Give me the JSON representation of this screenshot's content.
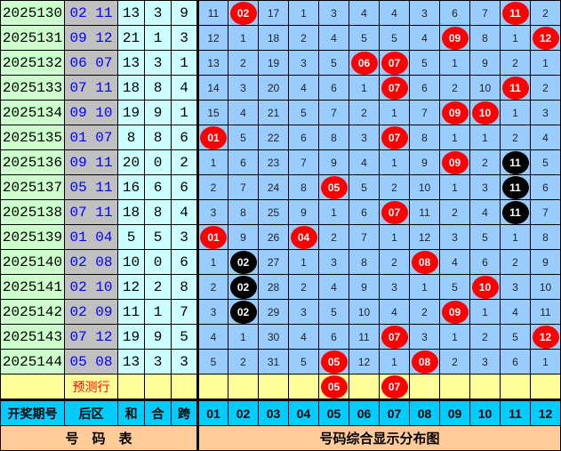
{
  "colors": {
    "hit": "#ff0000",
    "repeat": "#000000",
    "period_bg": "#ccffcc",
    "back_bg": "#c0c0c0",
    "stats_bg": "#ccffff",
    "grid_bg": "#99ccff",
    "predict_bg": "#ffff99",
    "header_bg": "#00ccff",
    "footer_bg": "#ffcc99"
  },
  "rows": [
    {
      "period": "2025130",
      "back": "02 11",
      "sum": "13",
      "he": "3",
      "kua": "9",
      "cells": [
        "11",
        "02",
        "17",
        "1",
        "3",
        "4",
        "4",
        "3",
        "6",
        "7",
        "11",
        "2"
      ],
      "marks": [
        "",
        "r",
        "",
        "",
        "",
        "",
        "",
        "",
        "",
        "",
        "r",
        ""
      ]
    },
    {
      "period": "2025131",
      "back": "09 12",
      "sum": "21",
      "he": "1",
      "kua": "3",
      "cells": [
        "12",
        "1",
        "18",
        "2",
        "4",
        "5",
        "5",
        "4",
        "09",
        "8",
        "1",
        "12"
      ],
      "marks": [
        "",
        "",
        "",
        "",
        "",
        "",
        "",
        "",
        "r",
        "",
        "",
        "r"
      ]
    },
    {
      "period": "2025132",
      "back": "06 07",
      "sum": "13",
      "he": "3",
      "kua": "1",
      "cells": [
        "13",
        "2",
        "19",
        "3",
        "5",
        "06",
        "07",
        "5",
        "1",
        "9",
        "2",
        "1"
      ],
      "marks": [
        "",
        "",
        "",
        "",
        "",
        "r",
        "r",
        "",
        "",
        "",
        "",
        ""
      ]
    },
    {
      "period": "2025133",
      "back": "07 11",
      "sum": "18",
      "he": "8",
      "kua": "4",
      "cells": [
        "14",
        "3",
        "20",
        "4",
        "6",
        "1",
        "07",
        "6",
        "2",
        "10",
        "11",
        "2"
      ],
      "marks": [
        "",
        "",
        "",
        "",
        "",
        "",
        "r",
        "",
        "",
        "",
        "r",
        ""
      ]
    },
    {
      "period": "2025134",
      "back": "09 10",
      "sum": "19",
      "he": "9",
      "kua": "1",
      "cells": [
        "15",
        "4",
        "21",
        "5",
        "7",
        "2",
        "1",
        "7",
        "09",
        "10",
        "1",
        "3"
      ],
      "marks": [
        "",
        "",
        "",
        "",
        "",
        "",
        "",
        "",
        "r",
        "r",
        "",
        ""
      ]
    },
    {
      "period": "2025135",
      "back": "01 07",
      "sum": "8",
      "he": "8",
      "kua": "6",
      "cells": [
        "01",
        "5",
        "22",
        "6",
        "8",
        "3",
        "07",
        "8",
        "1",
        "1",
        "2",
        "4"
      ],
      "marks": [
        "r",
        "",
        "",
        "",
        "",
        "",
        "r",
        "",
        "",
        "",
        "",
        ""
      ]
    },
    {
      "period": "2025136",
      "back": "09 11",
      "sum": "20",
      "he": "0",
      "kua": "2",
      "cells": [
        "1",
        "6",
        "23",
        "7",
        "9",
        "4",
        "1",
        "9",
        "09",
        "2",
        "11",
        "5"
      ],
      "marks": [
        "",
        "",
        "",
        "",
        "",
        "",
        "",
        "",
        "r",
        "",
        "b",
        ""
      ]
    },
    {
      "period": "2025137",
      "back": "05 11",
      "sum": "16",
      "he": "6",
      "kua": "6",
      "cells": [
        "2",
        "7",
        "24",
        "8",
        "05",
        "5",
        "2",
        "10",
        "1",
        "3",
        "11",
        "6"
      ],
      "marks": [
        "",
        "",
        "",
        "",
        "r",
        "",
        "",
        "",
        "",
        "",
        "b",
        ""
      ]
    },
    {
      "period": "2025138",
      "back": "07 11",
      "sum": "18",
      "he": "8",
      "kua": "4",
      "cells": [
        "3",
        "8",
        "25",
        "9",
        "1",
        "6",
        "07",
        "11",
        "2",
        "4",
        "11",
        "7"
      ],
      "marks": [
        "",
        "",
        "",
        "",
        "",
        "",
        "r",
        "",
        "",
        "",
        "b",
        ""
      ]
    },
    {
      "period": "2025139",
      "back": "01 04",
      "sum": "5",
      "he": "5",
      "kua": "3",
      "cells": [
        "01",
        "9",
        "26",
        "04",
        "2",
        "7",
        "1",
        "12",
        "3",
        "5",
        "1",
        "8"
      ],
      "marks": [
        "r",
        "",
        "",
        "r",
        "",
        "",
        "",
        "",
        "",
        "",
        "",
        ""
      ]
    },
    {
      "period": "2025140",
      "back": "02 08",
      "sum": "10",
      "he": "0",
      "kua": "6",
      "cells": [
        "1",
        "02",
        "27",
        "1",
        "3",
        "8",
        "2",
        "08",
        "4",
        "6",
        "2",
        "9"
      ],
      "marks": [
        "",
        "b",
        "",
        "",
        "",
        "",
        "",
        "r",
        "",
        "",
        "",
        ""
      ]
    },
    {
      "period": "2025141",
      "back": "02 10",
      "sum": "12",
      "he": "2",
      "kua": "8",
      "cells": [
        "2",
        "02",
        "28",
        "2",
        "4",
        "9",
        "3",
        "1",
        "5",
        "10",
        "3",
        "10"
      ],
      "marks": [
        "",
        "b",
        "",
        "",
        "",
        "",
        "",
        "",
        "",
        "r",
        "",
        ""
      ]
    },
    {
      "period": "2025142",
      "back": "02 09",
      "sum": "11",
      "he": "1",
      "kua": "7",
      "cells": [
        "3",
        "02",
        "29",
        "3",
        "5",
        "10",
        "4",
        "2",
        "09",
        "1",
        "4",
        "11"
      ],
      "marks": [
        "",
        "b",
        "",
        "",
        "",
        "",
        "",
        "",
        "r",
        "",
        "",
        ""
      ]
    },
    {
      "period": "2025143",
      "back": "07 12",
      "sum": "19",
      "he": "9",
      "kua": "5",
      "cells": [
        "4",
        "1",
        "30",
        "4",
        "6",
        "11",
        "07",
        "3",
        "1",
        "2",
        "5",
        "12"
      ],
      "marks": [
        "",
        "",
        "",
        "",
        "",
        "",
        "r",
        "",
        "",
        "",
        "",
        "r"
      ]
    },
    {
      "period": "2025144",
      "back": "05 08",
      "sum": "13",
      "he": "3",
      "kua": "3",
      "cells": [
        "5",
        "2",
        "31",
        "5",
        "05",
        "12",
        "1",
        "08",
        "2",
        "3",
        "6",
        "1"
      ],
      "marks": [
        "",
        "",
        "",
        "",
        "r",
        "",
        "",
        "r",
        "",
        "",
        "",
        ""
      ]
    }
  ],
  "prediction": {
    "label": "预测行",
    "cells": [
      "",
      "",
      "",
      "",
      "05",
      "",
      "07",
      "",
      "",
      "",
      "",
      ""
    ],
    "marks": [
      "",
      "",
      "",
      "",
      "r",
      "",
      "r",
      "",
      "",
      "",
      "",
      ""
    ]
  },
  "header": {
    "period": "开奖期号",
    "back": "后区",
    "sum": "和",
    "he": "合",
    "kua": "跨",
    "numbers": [
      "01",
      "02",
      "03",
      "04",
      "05",
      "06",
      "07",
      "08",
      "09",
      "10",
      "11",
      "12"
    ]
  },
  "footer": {
    "left": "号　码　表",
    "right": "号码综合显示分布图"
  }
}
